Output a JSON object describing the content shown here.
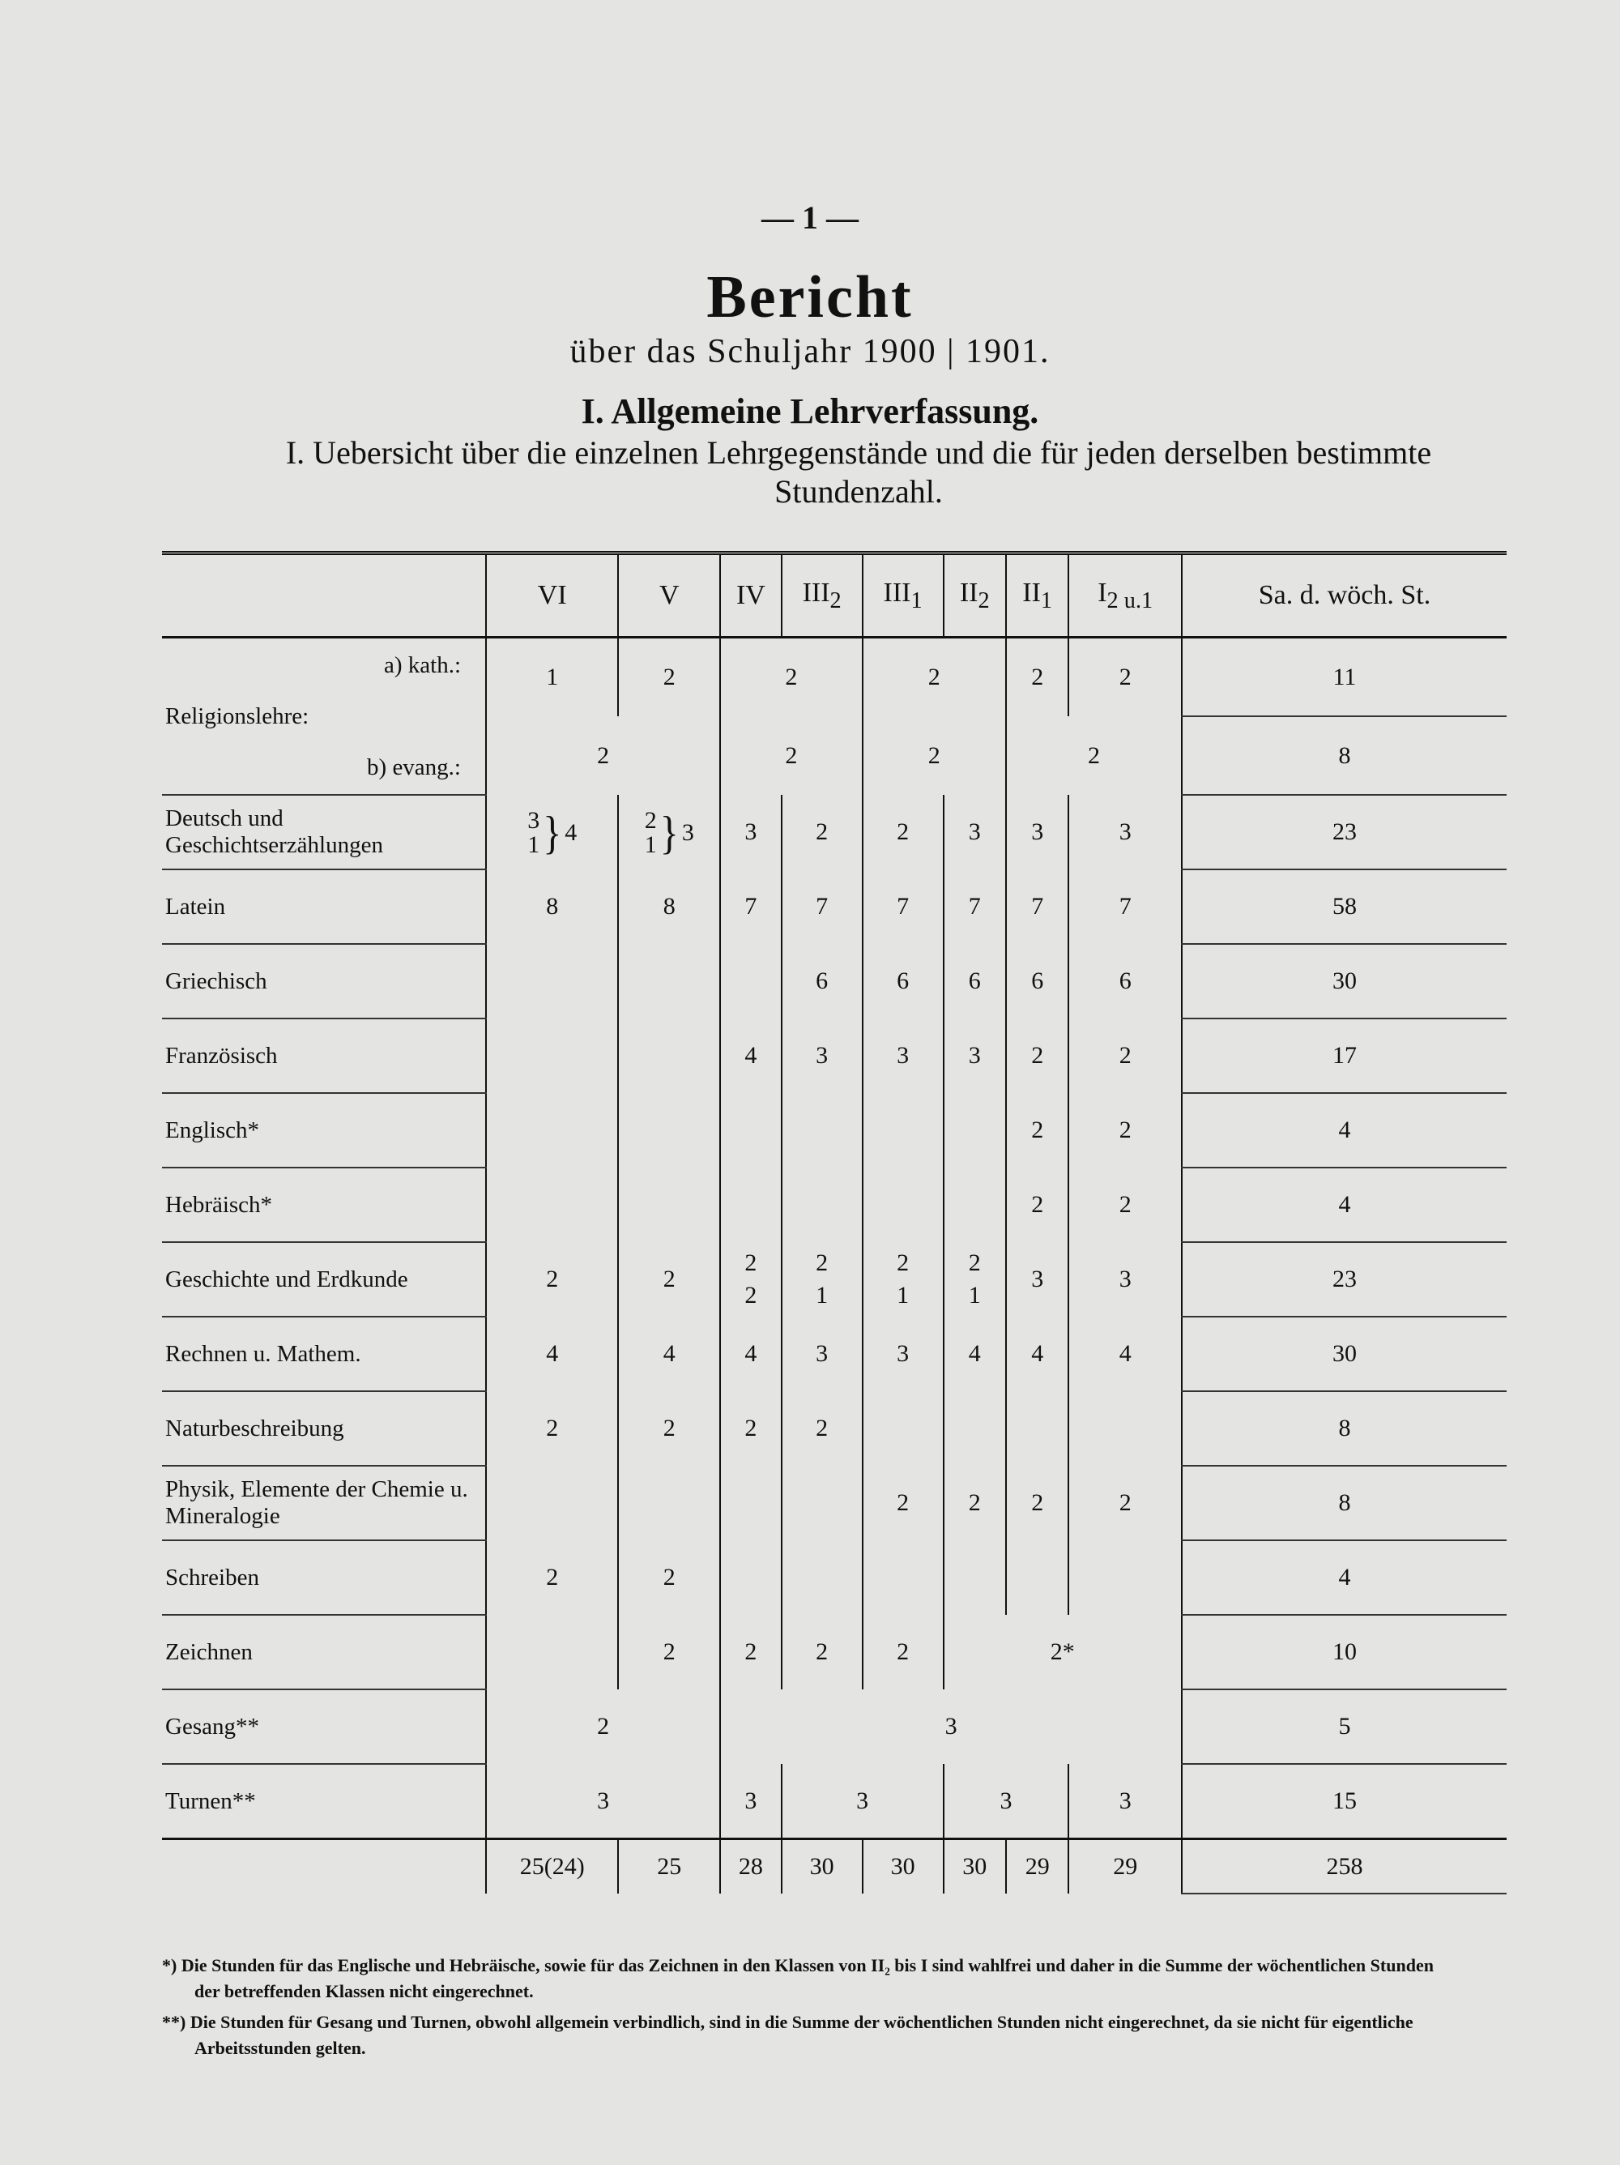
{
  "header": {
    "page_number": "— 1 —",
    "title": "Bericht",
    "subtitle": "über das Schuljahr 1900 | 1901.",
    "section": "I. Allgemeine Lehrverfassung.",
    "subsection": "I. Uebersicht über die einzelnen Lehrgegenstände und die für jeden derselben bestimmte Stundenzahl."
  },
  "table": {
    "columns": [
      "VI",
      "V",
      "IV",
      {
        "base": "III",
        "sub": "2"
      },
      {
        "base": "III",
        "sub": "1"
      },
      {
        "base": "II",
        "sub": "2"
      },
      {
        "base": "II",
        "sub": "1"
      },
      {
        "base": "I",
        "sub": "2 u.1"
      },
      "Sa. d. wöch. St."
    ],
    "religion": {
      "subject": "Religionslehre:",
      "parts": [
        {
          "label": "a) kath.:",
          "cells": [
            1,
            2,
            2,
            2,
            2,
            2,
            11
          ]
        },
        {
          "label": "b) evang.:",
          "cells": [
            2,
            2,
            2,
            2,
            8
          ]
        }
      ]
    },
    "rows": [
      {
        "subject": "Deutsch und Geschichtserzählungen",
        "cells": [
          [
            3,
            1,
            4
          ],
          [
            2,
            1,
            3
          ],
          3,
          2,
          2,
          3,
          3,
          3,
          23
        ]
      },
      {
        "subject": "Latein",
        "cells": [
          8,
          8,
          7,
          7,
          7,
          7,
          7,
          7,
          58
        ]
      },
      {
        "subject": "Griechisch",
        "cells": [
          null,
          null,
          null,
          6,
          6,
          6,
          6,
          6,
          30
        ]
      },
      {
        "subject": "Französisch",
        "cells": [
          null,
          null,
          4,
          3,
          3,
          3,
          2,
          2,
          17
        ]
      },
      {
        "subject": "Englisch*",
        "cells": [
          null,
          null,
          null,
          null,
          null,
          null,
          2,
          2,
          4
        ]
      },
      {
        "subject": "Hebräisch*",
        "cells": [
          null,
          null,
          null,
          null,
          null,
          null,
          2,
          2,
          4
        ]
      },
      {
        "subject": "Geschichte und Erdkunde",
        "cells": [
          2,
          2,
          [
            2,
            2
          ],
          [
            2,
            1
          ],
          [
            2,
            1
          ],
          [
            2,
            1
          ],
          3,
          3,
          23
        ]
      },
      {
        "subject": "Rechnen u. Mathem.",
        "cells": [
          4,
          4,
          4,
          3,
          3,
          4,
          4,
          4,
          30
        ]
      },
      {
        "subject": "Naturbeschreibung",
        "cells": [
          2,
          2,
          2,
          2,
          null,
          null,
          null,
          null,
          8
        ]
      },
      {
        "subject": "Physik, Elemente der Chemie u. Mineralogie",
        "cells": [
          null,
          null,
          null,
          null,
          2,
          2,
          2,
          2,
          8
        ]
      },
      {
        "subject": "Schreiben",
        "cells": [
          2,
          2,
          null,
          null,
          null,
          null,
          null,
          null,
          4
        ]
      },
      {
        "subject": "Zeichnen",
        "cells": [
          null,
          2,
          2,
          2,
          2,
          "2*",
          10
        ]
      },
      {
        "subject": "Gesang**",
        "cells": [
          2,
          3,
          5
        ]
      },
      {
        "subject": "Turnen**",
        "cells": [
          3,
          3,
          3,
          3,
          3,
          15
        ]
      }
    ],
    "totals": [
      "25(24)",
      25,
      28,
      30,
      30,
      30,
      29,
      29,
      258
    ]
  },
  "footnotes": [
    "*) Die Stunden für das Englische und Hebräische, sowie für das Zeichnen in den Klassen von II₂ bis I sind wahlfrei und daher in die Summe der wöchentlichen Stunden der betreffenden Klassen nicht eingerechnet.",
    "**) Die Stunden für Gesang und Turnen, obwohl allgemein verbindlich, sind in die Summe der wöchentlichen Stunden nicht eingerechnet, da sie nicht für eigentliche Arbeitsstunden gelten."
  ]
}
